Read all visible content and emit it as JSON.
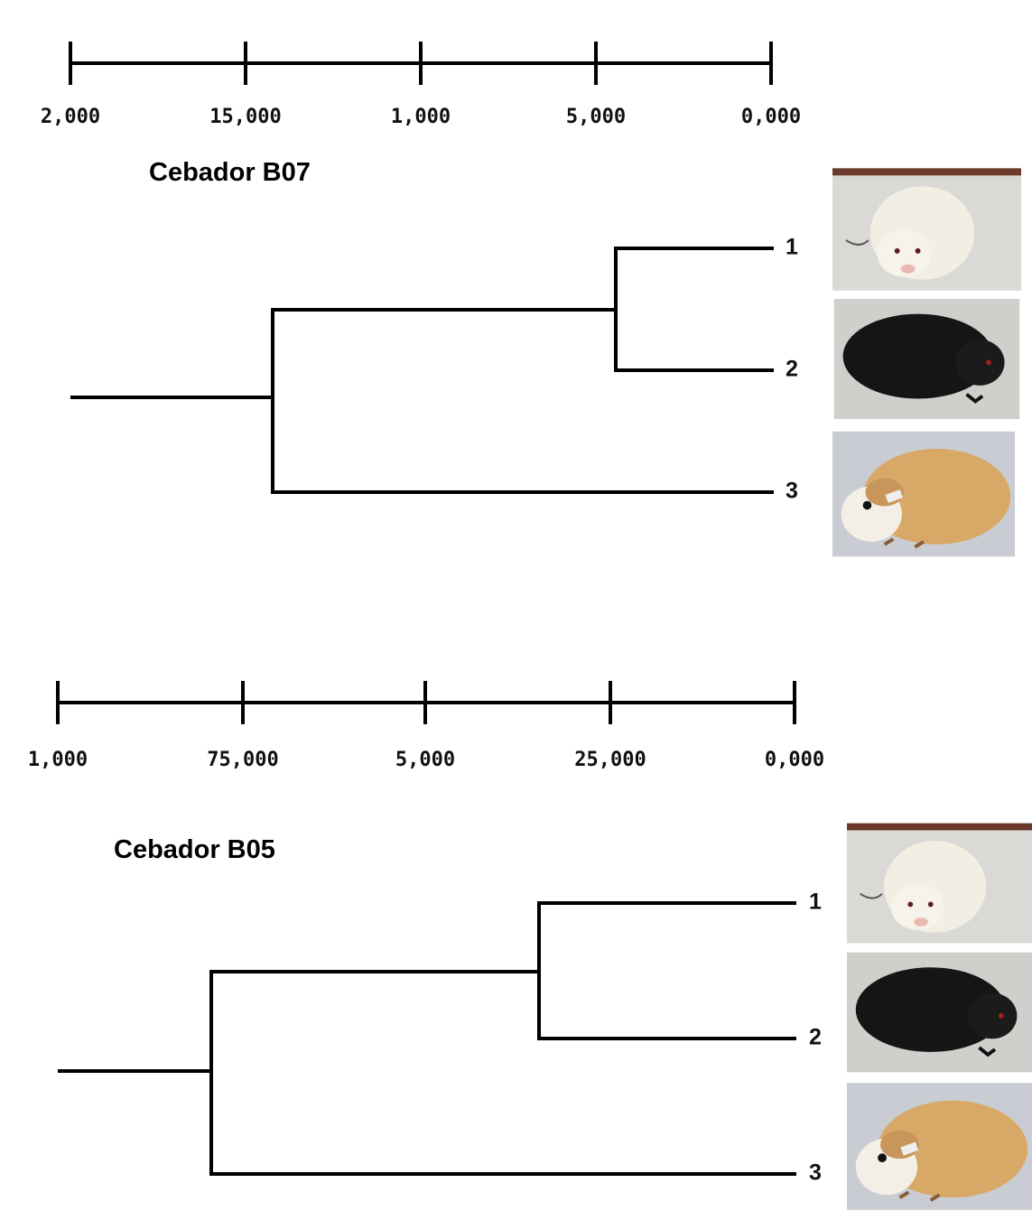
{
  "panels": [
    {
      "scale_labels": [
        "2,000",
        "15,000",
        "1,000",
        "5,000",
        "0,000"
      ],
      "title": "Cebador B07",
      "leaves": [
        "1",
        "2",
        "3"
      ]
    },
    {
      "scale_labels": [
        "1,000",
        "75,000",
        "5,000",
        "25,000",
        "0,000"
      ],
      "title": "Cebador B05",
      "leaves": [
        "1",
        "2",
        "3"
      ]
    }
  ]
}
